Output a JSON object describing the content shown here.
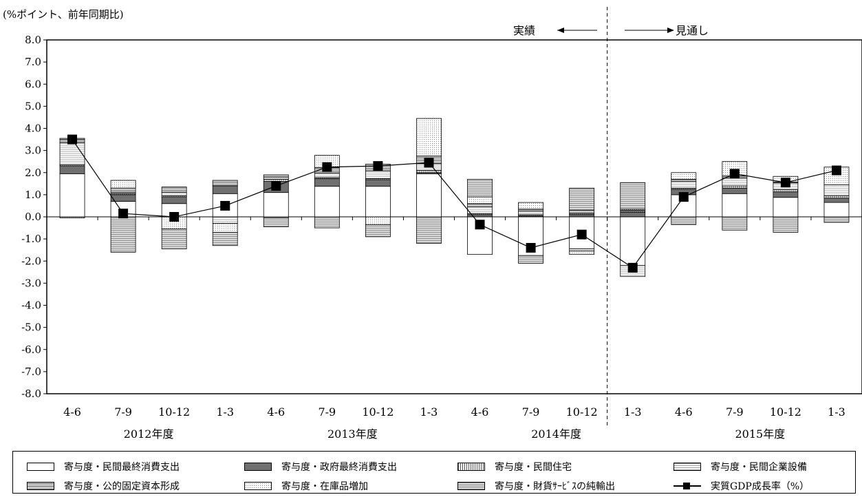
{
  "unit_label": "(%ポイント、前年同期比)",
  "annotations": {
    "actual": "実績",
    "forecast": "見通し"
  },
  "colors": {
    "private_consumption": "#ffffff",
    "government_consumption": "#707070",
    "private_housing": "#dcdcdc",
    "private_investment": "#ececec",
    "public_investment": "#b0b0b0",
    "inventory": "#f2f2f2",
    "net_exports": "#c4c4c4"
  },
  "chart_data": {
    "type": "bar",
    "stacked": true,
    "ylim": [
      -8.0,
      8.0
    ],
    "yticks": [
      "8.0",
      "7.0",
      "6.0",
      "5.0",
      "4.0",
      "3.0",
      "2.0",
      "1.0",
      "0.0",
      "-1.0",
      "-2.0",
      "-3.0",
      "-4.0",
      "-5.0",
      "-6.0",
      "-7.0",
      "-8.0"
    ],
    "categories": [
      "4-6",
      "7-9",
      "10-12",
      "1-3",
      "4-6",
      "7-9",
      "10-12",
      "1-3",
      "4-6",
      "7-9",
      "10-12",
      "1-3",
      "4-6",
      "7-9",
      "10-12",
      "1-3"
    ],
    "year_groups": [
      {
        "label": "2012年度",
        "start": 0,
        "end": 3
      },
      {
        "label": "2013年度",
        "start": 4,
        "end": 7
      },
      {
        "label": "2014年度",
        "start": 8,
        "end": 11
      },
      {
        "label": "2015年度",
        "start": 12,
        "end": 15
      }
    ],
    "divider_after_index": 10.5,
    "series": [
      {
        "name": "寄与度・民間最終消費支出",
        "key": "private_consumption",
        "values": [
          1.95,
          0.7,
          0.6,
          1.05,
          1.1,
          1.38,
          1.38,
          1.95,
          -1.7,
          -1.75,
          -1.45,
          -2.2,
          1.0,
          1.05,
          0.88,
          0.65
        ]
      },
      {
        "name": "寄与度・政府最終消費支出",
        "key": "government_consumption",
        "values": [
          0.35,
          0.3,
          0.3,
          0.35,
          0.5,
          0.35,
          0.3,
          0.05,
          0.1,
          0.05,
          0.1,
          0.2,
          0.25,
          0.25,
          0.25,
          0.2
        ]
      },
      {
        "name": "寄与度・民間住宅",
        "key": "private_housing",
        "values": [
          0.05,
          0.05,
          0.05,
          0.0,
          0.1,
          0.05,
          0.05,
          0.1,
          0.05,
          0.05,
          0.05,
          0.05,
          0.05,
          0.1,
          0.1,
          0.1
        ]
      },
      {
        "name": "寄与度・民間企業設備",
        "key": "private_investment",
        "values": [
          1.0,
          0.05,
          0.15,
          -0.3,
          0.1,
          0.2,
          0.35,
          0.3,
          0.3,
          0.15,
          -0.1,
          -0.5,
          0.3,
          0.35,
          0.3,
          0.5
        ]
      },
      {
        "name": "寄与度・公的固定資本形成",
        "key": "public_investment",
        "values": [
          0.15,
          0.2,
          0.25,
          0.25,
          0.1,
          0.25,
          0.3,
          0.35,
          0.15,
          0.1,
          0.15,
          0.05,
          0.1,
          0.1,
          0.05,
          0.0
        ]
      },
      {
        "name": "寄与度・在庫品増加",
        "key": "inventory",
        "values": [
          -0.05,
          0.35,
          -0.55,
          -0.4,
          -0.05,
          0.55,
          -0.35,
          1.7,
          0.3,
          0.3,
          -0.15,
          0.05,
          0.3,
          0.65,
          0.25,
          0.8
        ]
      },
      {
        "name": "寄与度・財貨ｻｰﾋﾞｽの純輸出",
        "key": "net_exports",
        "values": [
          0.05,
          -1.6,
          -0.9,
          -0.6,
          -0.4,
          -0.5,
          -0.55,
          -1.2,
          0.8,
          -0.35,
          1.0,
          1.2,
          -0.35,
          -0.6,
          -0.7,
          -0.25
        ]
      }
    ],
    "line": {
      "name": "実質GDP成長率（%）",
      "values": [
        3.5,
        0.15,
        0.0,
        0.5,
        1.4,
        2.25,
        2.3,
        2.45,
        -0.35,
        -1.4,
        -0.8,
        -2.3,
        0.9,
        1.95,
        1.55,
        2.1
      ]
    }
  },
  "legend": [
    {
      "label": "寄与度・民間最終消費支出",
      "key": "private_consumption",
      "kind": "bar"
    },
    {
      "label": "寄与度・政府最終消費支出",
      "key": "government_consumption",
      "kind": "bar"
    },
    {
      "label": "寄与度・民間住宅",
      "key": "private_housing",
      "kind": "bar"
    },
    {
      "label": "寄与度・民間企業設備",
      "key": "private_investment",
      "kind": "bar"
    },
    {
      "label": "寄与度・公的固定資本形成",
      "key": "public_investment",
      "kind": "bar"
    },
    {
      "label": "寄与度・在庫品増加",
      "key": "inventory",
      "kind": "bar"
    },
    {
      "label": "寄与度・財貨ｻｰﾋﾞｽの純輸出",
      "key": "net_exports",
      "kind": "bar"
    },
    {
      "label": "実質GDP成長率（%）",
      "key": "gdp",
      "kind": "line"
    }
  ]
}
